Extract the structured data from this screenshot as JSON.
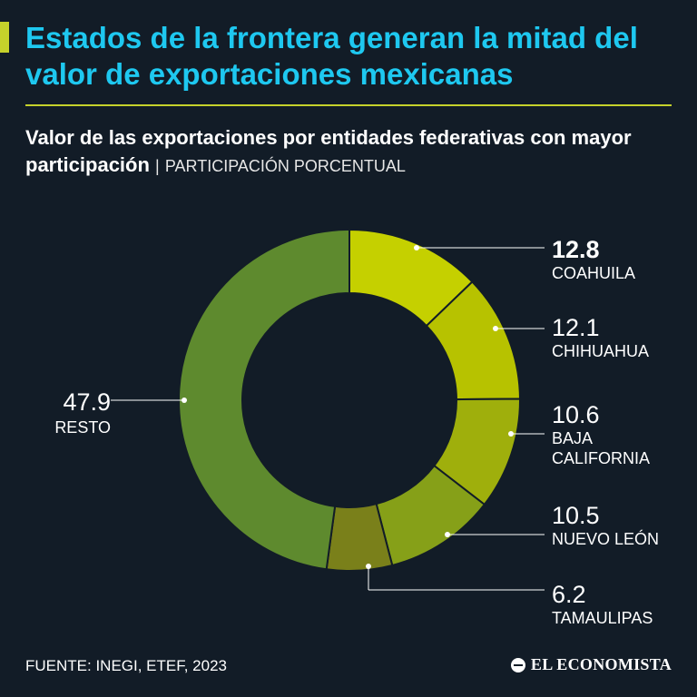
{
  "header": {
    "title": "Estados de la frontera generan la mitad del valor de exportaciones mexicanas",
    "subtitle": "Valor de las exportaciones por entidades federativas con mayor participación",
    "separator": "|",
    "unit_label": "PARTICIPACIÓN PORCENTUAL"
  },
  "chart_data": {
    "type": "pie",
    "variant": "donut",
    "title": "Valor de las exportaciones por entidades federativas con mayor participación",
    "unit": "PARTICIPACIÓN PORCENTUAL",
    "slices": [
      {
        "key": "coahuila",
        "label_lines": [
          "COAHUILA"
        ],
        "value": 12.8,
        "value_text": "12.8",
        "color": "#c5d000",
        "bold": true
      },
      {
        "key": "chihuahua",
        "label_lines": [
          "CHIHUAHUA"
        ],
        "value": 12.1,
        "value_text": "12.1",
        "color": "#b7c200",
        "bold": false
      },
      {
        "key": "baja-california",
        "label_lines": [
          "BAJA",
          "CALIFORNIA"
        ],
        "value": 10.6,
        "value_text": "10.6",
        "color": "#9faf0c",
        "bold": false
      },
      {
        "key": "nuevo-leon",
        "label_lines": [
          "NUEVO LEÓN"
        ],
        "value": 10.5,
        "value_text": "10.5",
        "color": "#86a018",
        "bold": false
      },
      {
        "key": "tamaulipas",
        "label_lines": [
          "TAMAULIPAS"
        ],
        "value": 6.2,
        "value_text": "6.2",
        "color": "#7a801a",
        "bold": false
      },
      {
        "key": "resto",
        "label_lines": [
          "RESTO"
        ],
        "value": 47.9,
        "value_text": "47.9",
        "color": "#5e8a2e",
        "bold": false
      }
    ],
    "legend": "none"
  },
  "footer": {
    "source": "FUENTE: INEGI, ETEF, 2023",
    "brand": "EL ECONOMISTA"
  }
}
